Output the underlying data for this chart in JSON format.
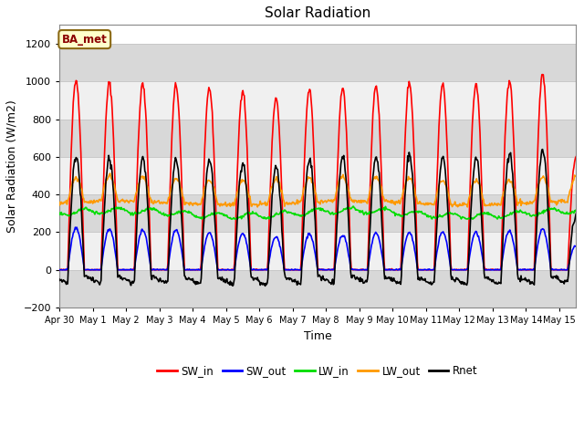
{
  "title": "Solar Radiation",
  "xlabel": "Time",
  "ylabel": "Solar Radiation (W/m2)",
  "annotation": "BA_met",
  "ylim": [
    -200,
    1300
  ],
  "yticks": [
    -200,
    0,
    200,
    400,
    600,
    800,
    1000,
    1200
  ],
  "colors": {
    "SW_in": "#ff0000",
    "SW_out": "#0000ff",
    "LW_in": "#00dd00",
    "LW_out": "#ff9900",
    "Rnet": "#000000"
  },
  "series_labels": [
    "SW_in",
    "SW_out",
    "LW_in",
    "LW_out",
    "Rnet"
  ],
  "fig_bg_color": "#ffffff",
  "plot_bg_color": "#ffffff",
  "band_color_light": "#f0f0f0",
  "band_color_dark": "#d8d8d8",
  "grid_color": "#c8c8c8",
  "linewidth": 1.2,
  "sw_in_peaks": [
    1010,
    990,
    985,
    980,
    965,
    955,
    905,
    955,
    965,
    980,
    995,
    985,
    985,
    1005,
    1040,
    600
  ],
  "sw_out_peaks": [
    220,
    215,
    210,
    210,
    195,
    190,
    175,
    190,
    185,
    195,
    200,
    200,
    200,
    205,
    215,
    130
  ],
  "xtick_labels": [
    "Apr 30",
    "May 1",
    "May 2",
    "May 3",
    "May 4",
    "May 5",
    "May 6",
    "May 7",
    "May 8",
    "May 9",
    "May 10",
    "May 11",
    "May 12",
    "May 13",
    "May 14",
    "May 15"
  ]
}
